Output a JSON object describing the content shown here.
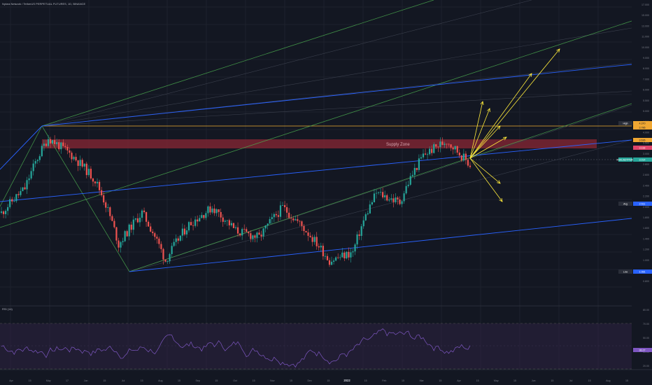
{
  "header": {
    "title": "Nykea Network / TetherUS PERPETUAL FUTURES, 1D, BINANCE"
  },
  "rsi": {
    "title": "RSI (14)",
    "badge": "36.27",
    "axis": [
      "80.00",
      "70.00",
      "50.00",
      "30.00",
      "20.00"
    ]
  },
  "annotations": {
    "supply_zone": "Supply Zone"
  },
  "price_badges": {
    "high": {
      "tag": "High",
      "value": "4.370"
    },
    "zone_top": "3.786",
    "zone_mid": "3.636",
    "zone_bottom": "3.118",
    "last": {
      "tag": "XNAUSDTPERP",
      "value": "3.014"
    },
    "avg": {
      "tag": "Avg",
      "value": "2.511"
    },
    "low": {
      "tag": "Low",
      "value": "1.081"
    }
  },
  "colors": {
    "background": "#131722",
    "up": "#26a69a",
    "down": "#ef5350",
    "fork_blue": "#2962ff",
    "fork_green": "#4caf50",
    "arrows": "#ffeb3b",
    "supply_zone": "#7b2531",
    "rsi_line": "#7e57c2"
  },
  "chart_data": {
    "type": "candlestick",
    "title": "Nykea Network / TetherUS PERPETUAL FUTURES, 1D, BINANCE",
    "y_scale": "log",
    "y_axis_ticks": [
      "17.000",
      "15.000",
      "13.000",
      "11.000",
      "10.000",
      "9.000",
      "8.000",
      "7.000",
      "6.000",
      "5.500",
      "5.000",
      "4.500",
      "4.000",
      "3.500",
      "3.000",
      "2.800",
      "2.600",
      "2.400",
      "2.200",
      "2.000",
      "1.800",
      "1.600",
      "1.400",
      "1.200",
      "1.000",
      "0.900",
      "0.800"
    ],
    "x_axis_ticks": [
      "Apr",
      "15",
      "May",
      "17",
      "Jun",
      "15",
      "Jul",
      "15",
      "Aug",
      "15",
      "Sep",
      "15",
      "Oct",
      "15",
      "Nov",
      "15",
      "Dec",
      "15",
      "2022",
      "15",
      "Feb",
      "15",
      "Mar",
      "15",
      "Apr",
      "15",
      "May",
      "15",
      "Jun",
      "15",
      "Jul",
      "15",
      "Aug",
      "15"
    ],
    "supply_zone": {
      "label": "Supply Zone",
      "top": 3.786,
      "bottom": 3.118
    },
    "key_levels": {
      "high": 4.37,
      "last": 3.014,
      "avg": 2.511,
      "low": 1.081
    },
    "price_path_approx": [
      1.9,
      2.4,
      3.9,
      3.3,
      2.6,
      1.4,
      1.9,
      1.2,
      1.7,
      2.0,
      1.6,
      1.5,
      2.0,
      1.6,
      1.2,
      1.3,
      2.3,
      2.1,
      3.3,
      3.8,
      3.0
    ],
    "rsi": {
      "name": "RSI (14)",
      "levels": [
        80,
        70,
        50,
        30,
        20
      ],
      "last": 36.27
    }
  }
}
